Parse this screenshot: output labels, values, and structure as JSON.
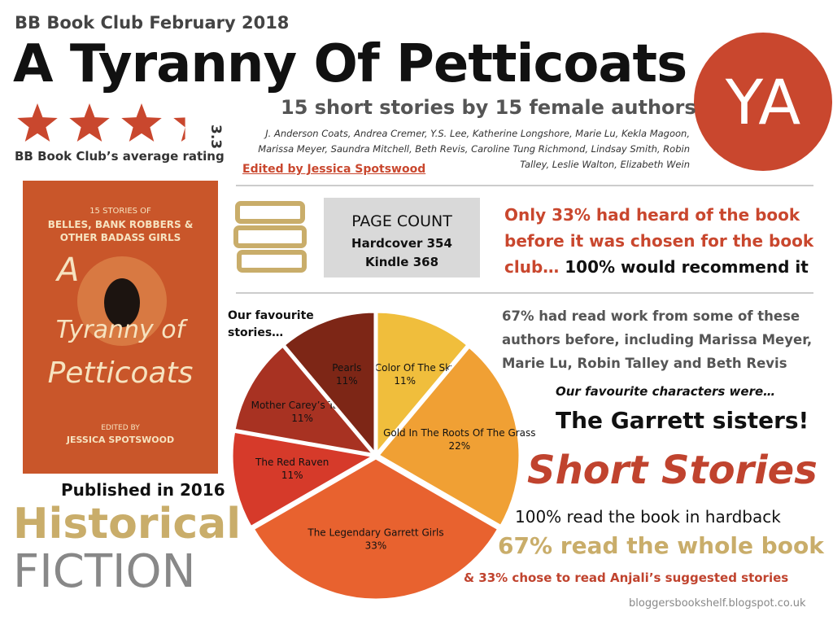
{
  "header": {
    "club": "BB Book Club February 2018",
    "title": "A Tyranny Of Petticoats",
    "badge": "YA",
    "subtitle": "15 short stories by 15 female authors",
    "authors": "J. Anderson Coats, Andrea Cremer, Y.S. Lee, Katherine Longshore, Marie Lu, Kekla Magoon, Marissa Meyer, Saundra Mitchell, Beth Revis, Caroline Tung Richmond, Lindsay Smith, Robin Talley, Leslie Walton, Elizabeth Wein",
    "editor": "Edited by Jessica Spotswood"
  },
  "rating": {
    "value": 3.3,
    "caption": "BB Book Club’s average rating"
  },
  "cover": {
    "line1": "15 STORIES OF",
    "line2": "BELLES, BANK ROBBERS &",
    "line3": "OTHER BADASS GIRLS",
    "title1": "A",
    "title2": "Tyranny of",
    "title3": "Petticoats",
    "edited": "EDITED BY",
    "editor": "JESSICA SPOTSWOOD"
  },
  "page_count": {
    "heading": "PAGE COUNT",
    "hardcover": "Hardcover 354",
    "kindle": "Kindle 368"
  },
  "facts": {
    "heard": "Only 33% had heard of the book before it was chosen for the book club…",
    "recommend": "100% would recommend it",
    "read_before": "67% had read work from some of these authors before, including Marissa Meyer, Marie Lu, Robin Talley and Beth Revis",
    "characters_intro": "Our favourite characters were…",
    "characters": "The Garrett sisters!",
    "format": "Short Stories",
    "hardback": "100% read the book in hardback",
    "whole": "67% read the whole book",
    "suggested": "& 33% chose to read Anjali’s suggested stories",
    "published": "Published in 2016",
    "genre1": "Historical",
    "genre2": "FICTION",
    "footer": "bloggersbookshelf.blogspot.co.uk"
  },
  "chart_data": {
    "type": "pie",
    "title": "Our favourite stories…",
    "categories": [
      "The Color Of The Sky",
      "Gold In The Roots Of The Grass",
      "The Legendary Garrett Girls",
      "The Red Raven",
      "Mother Carey’s Table",
      "Pearls"
    ],
    "values": [
      11,
      22,
      33,
      11,
      11,
      11
    ],
    "value_labels": [
      "11%",
      "22%",
      "33%",
      "11%",
      "11%",
      "11%"
    ],
    "colors": [
      "#f0be3c",
      "#f0a034",
      "#e8622f",
      "#d63a2a",
      "#a83222",
      "#7d2616"
    ]
  }
}
